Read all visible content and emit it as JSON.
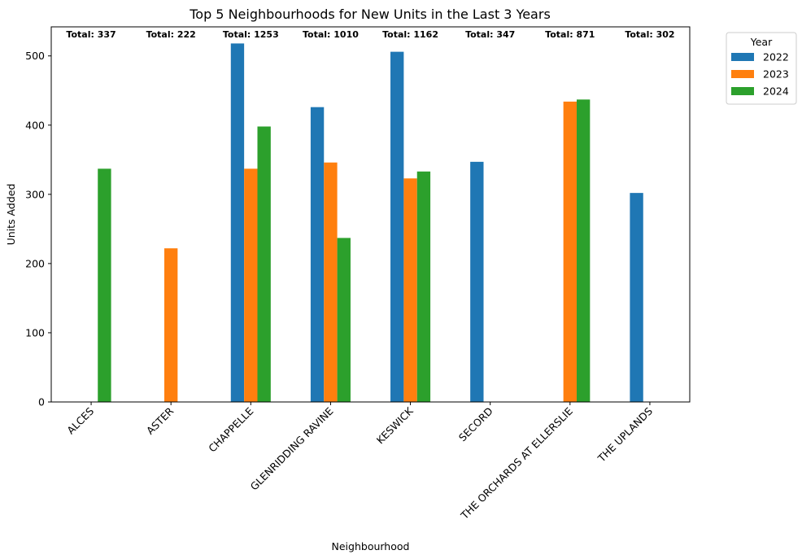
{
  "chart_data": {
    "type": "bar",
    "title": "Top 5 Neighbourhoods for New Units in the Last 3 Years",
    "xlabel": "Neighbourhood",
    "ylabel": "Units Added",
    "ylim": [
      0,
      542
    ],
    "yticks": [
      0,
      100,
      200,
      300,
      400,
      500
    ],
    "categories": [
      "ALCES",
      "ASTER",
      "CHAPPELLE",
      "GLENRIDDING RAVINE",
      "KESWICK",
      "SECORD",
      "THE ORCHARDS AT ELLERSLIE",
      "THE UPLANDS"
    ],
    "series": [
      {
        "name": "2022",
        "color": "#1f77b4",
        "values": [
          0,
          0,
          518,
          426,
          506,
          347,
          0,
          302
        ]
      },
      {
        "name": "2023",
        "color": "#ff7f0e",
        "values": [
          0,
          222,
          337,
          346,
          323,
          0,
          434,
          0
        ]
      },
      {
        "name": "2024",
        "color": "#2ca02c",
        "values": [
          337,
          0,
          398,
          237,
          333,
          0,
          437,
          0
        ]
      }
    ],
    "totals": [
      "Total: 337",
      "Total: 222",
      "Total: 1253",
      "Total: 1010",
      "Total: 1162",
      "Total: 347",
      "Total: 871",
      "Total: 302"
    ],
    "legend": {
      "title": "Year",
      "position": "outside-right"
    },
    "grid": false
  }
}
